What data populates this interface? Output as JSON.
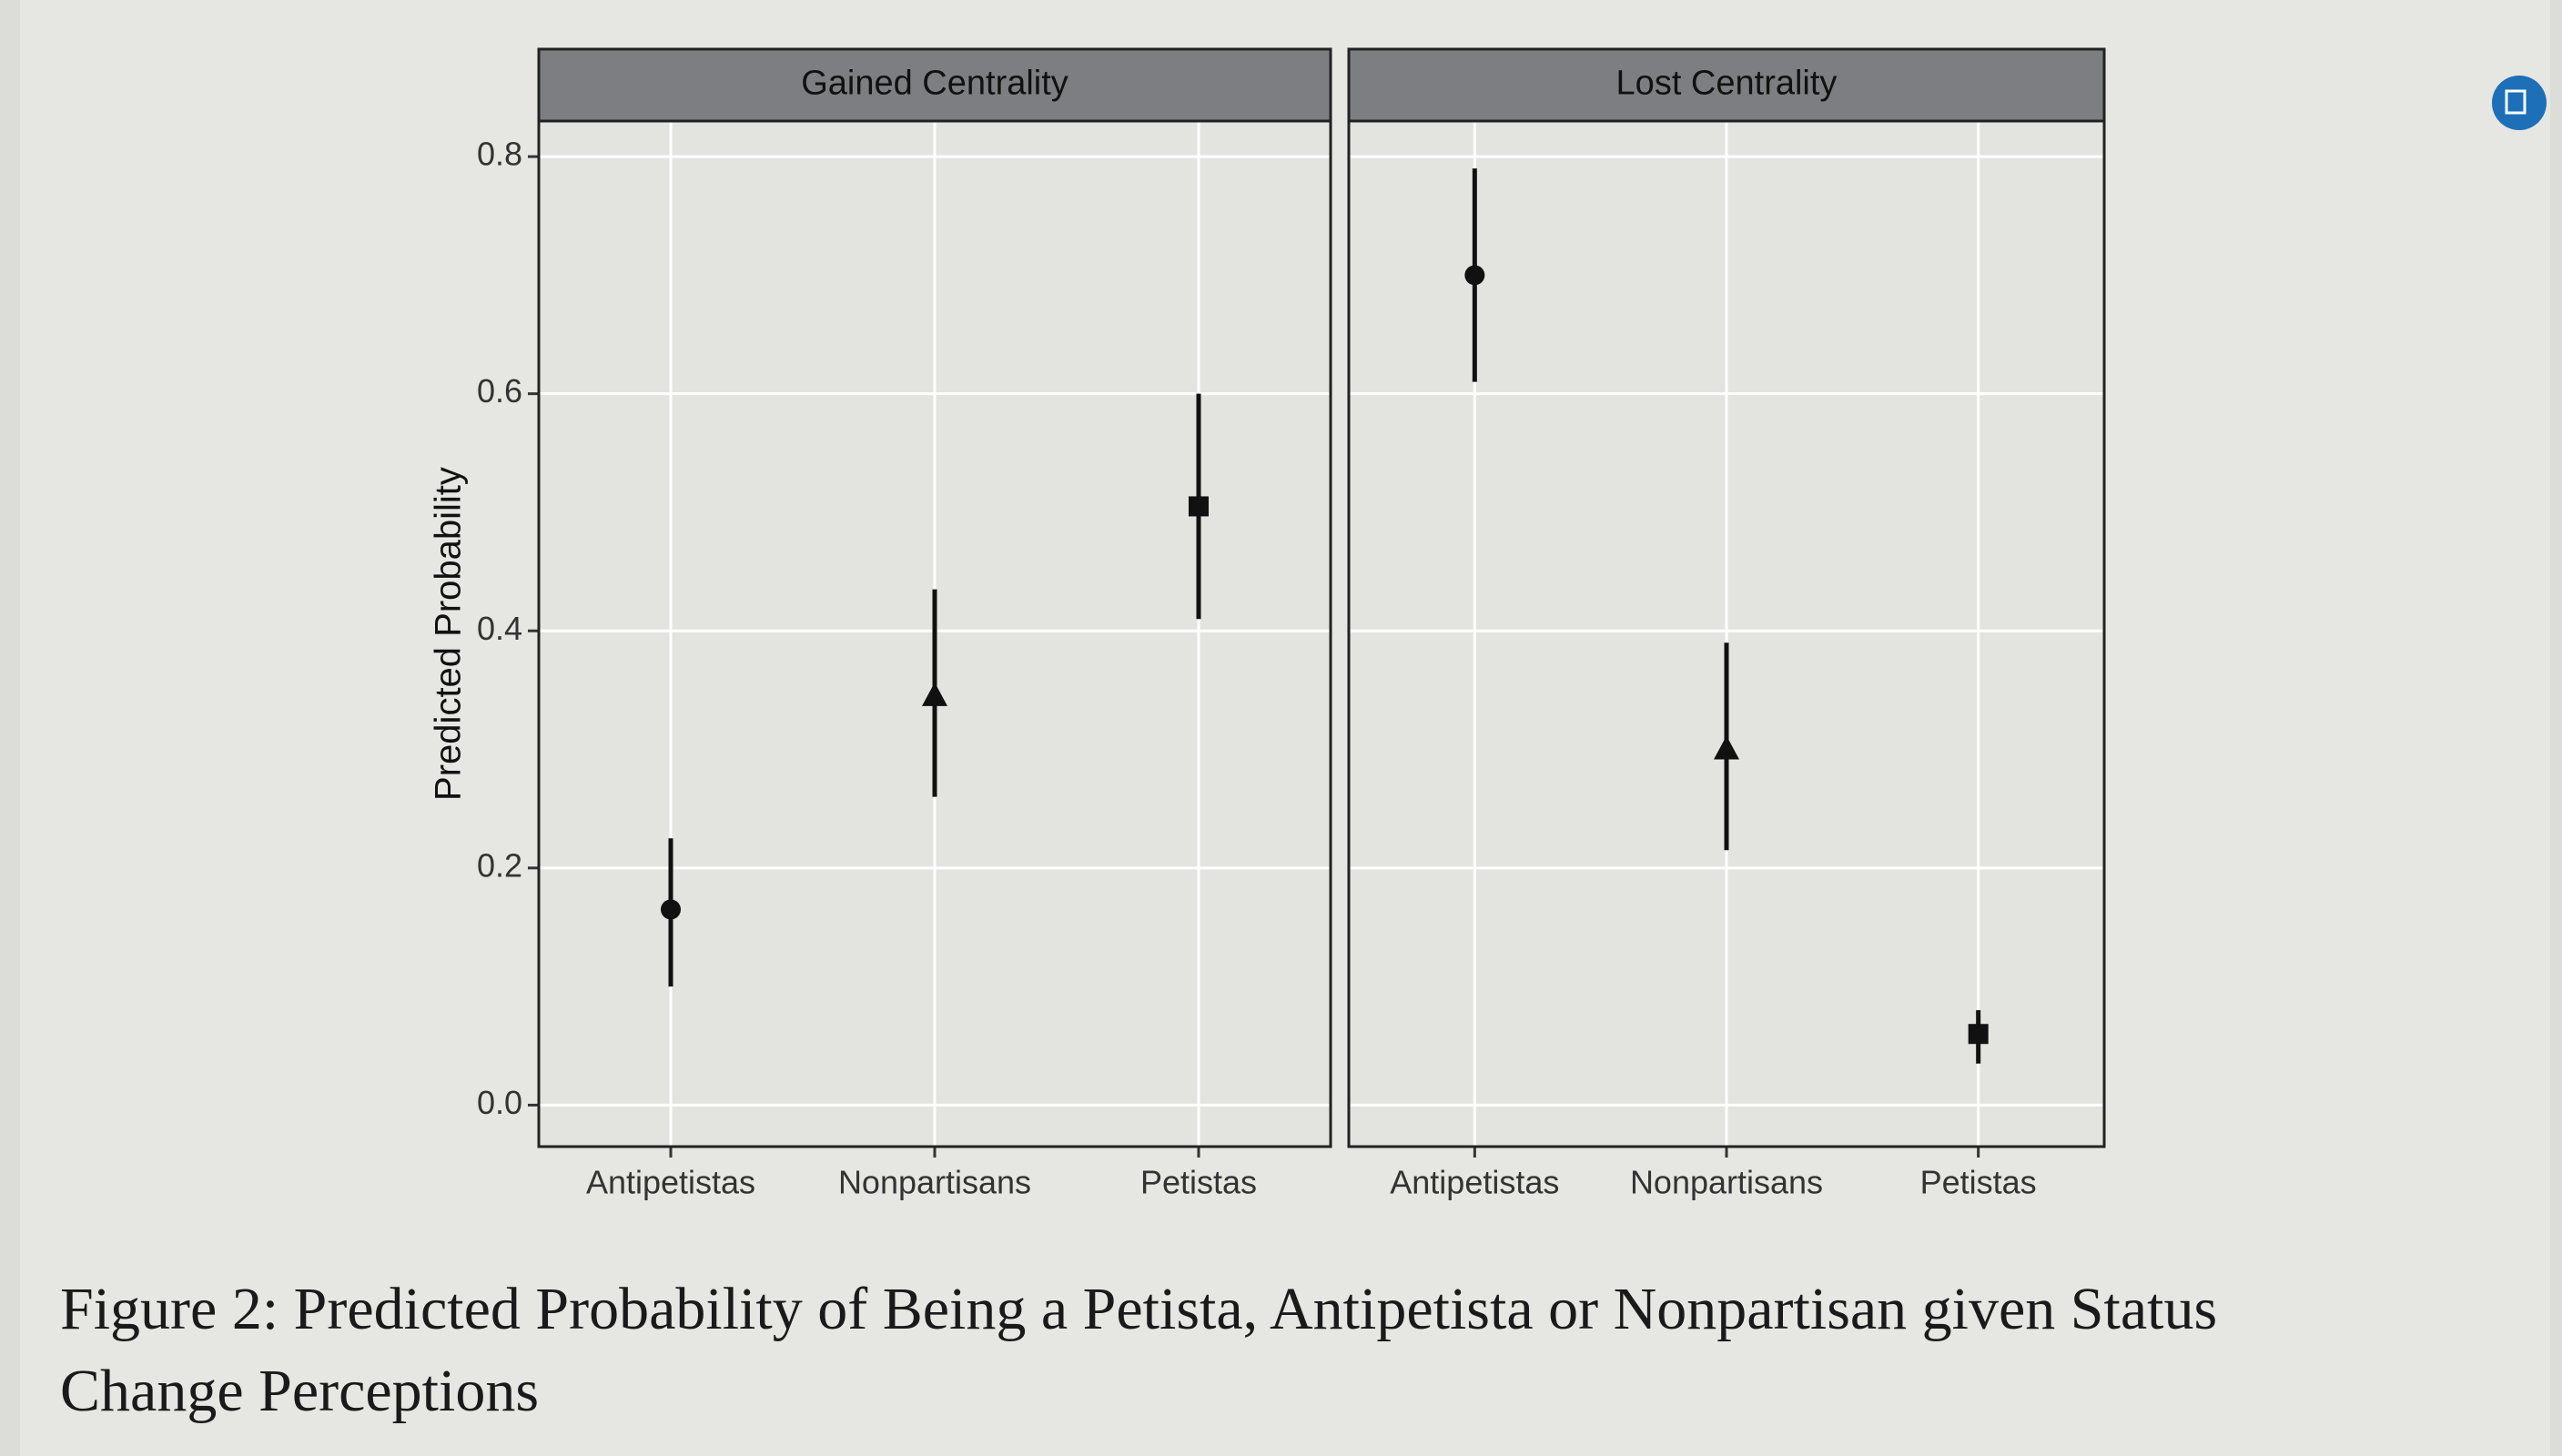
{
  "chart_data": [
    {
      "type": "pointrange",
      "title": "Gained Centrality",
      "y_label": "Predicted Probability",
      "categories": [
        "Antipetistas",
        "Nonpartisans",
        "Petistas"
      ],
      "markers": [
        "circle",
        "triangle",
        "square"
      ],
      "values": [
        0.165,
        0.345,
        0.505
      ],
      "lower": [
        0.1,
        0.26,
        0.41
      ],
      "upper": [
        0.225,
        0.435,
        0.6
      ],
      "color": "#111111",
      "ylim": [
        -0.035,
        0.83
      ],
      "yticks": [
        {
          "value": 0,
          "label": "0.0"
        },
        0.2,
        0.4,
        0.6,
        0.8
      ],
      "grid": true
    },
    {
      "type": "pointrange",
      "title": "Lost Centrality",
      "categories": [
        "Antipetistas",
        "Nonpartisans",
        "Petistas"
      ],
      "markers": [
        "circle",
        "triangle",
        "square"
      ],
      "values": [
        0.7,
        0.3,
        0.06
      ],
      "lower": [
        0.61,
        0.215,
        0.035
      ],
      "upper": [
        0.79,
        0.39,
        0.08
      ],
      "color": "#111111",
      "ylim": [
        -0.035,
        0.83
      ],
      "yticks": [
        {
          "value": 0,
          "label": "0.0"
        },
        0.2,
        0.4,
        0.6,
        0.8
      ],
      "grid": true
    }
  ],
  "caption": {
    "line1": "Figure 2: Predicted Probability of Being a Petista, Antipetista or Nonpartisan given Status",
    "line2": "Change Perceptions"
  }
}
